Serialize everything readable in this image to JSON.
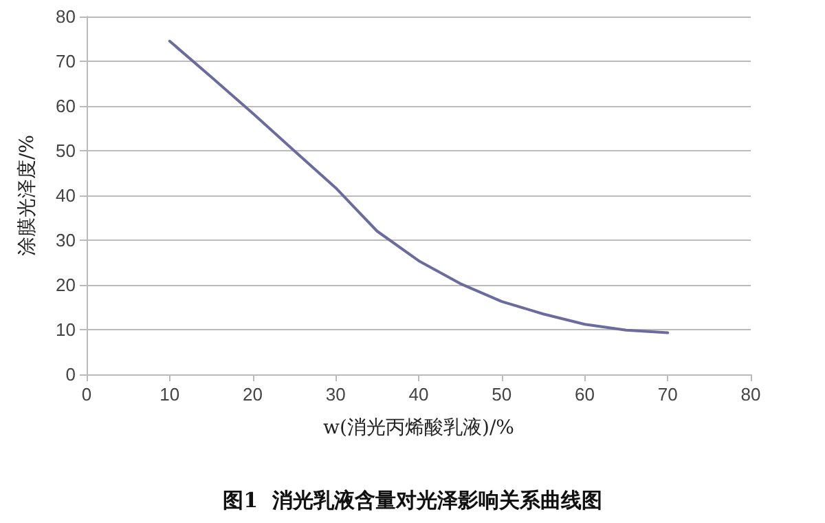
{
  "chart_data": {
    "type": "line",
    "title": "图1  消光乳液含量对光泽影响关系曲线图",
    "xlabel": "w(消光丙烯酸乳液)/%",
    "ylabel": "涂膜光泽度/%",
    "series": [
      {
        "color": "#6b6b9e",
        "x": [
          10,
          15,
          20,
          25,
          30,
          35,
          40,
          45,
          50,
          55,
          60,
          65,
          70
        ],
        "values": [
          74.5,
          66.5,
          58.4,
          50,
          41.7,
          32,
          25.4,
          20.3,
          16.3,
          13.5,
          11.2,
          9.9,
          9.3
        ]
      }
    ],
    "xlim": [
      0,
      80
    ],
    "xticks": [
      0,
      10,
      20,
      30,
      40,
      50,
      60,
      70,
      80
    ],
    "ylim": [
      0,
      80
    ],
    "yticks": [
      0,
      10,
      20,
      30,
      40,
      50,
      60,
      70,
      80
    ],
    "grid": "y",
    "marker": "none",
    "line_style": "solid"
  }
}
